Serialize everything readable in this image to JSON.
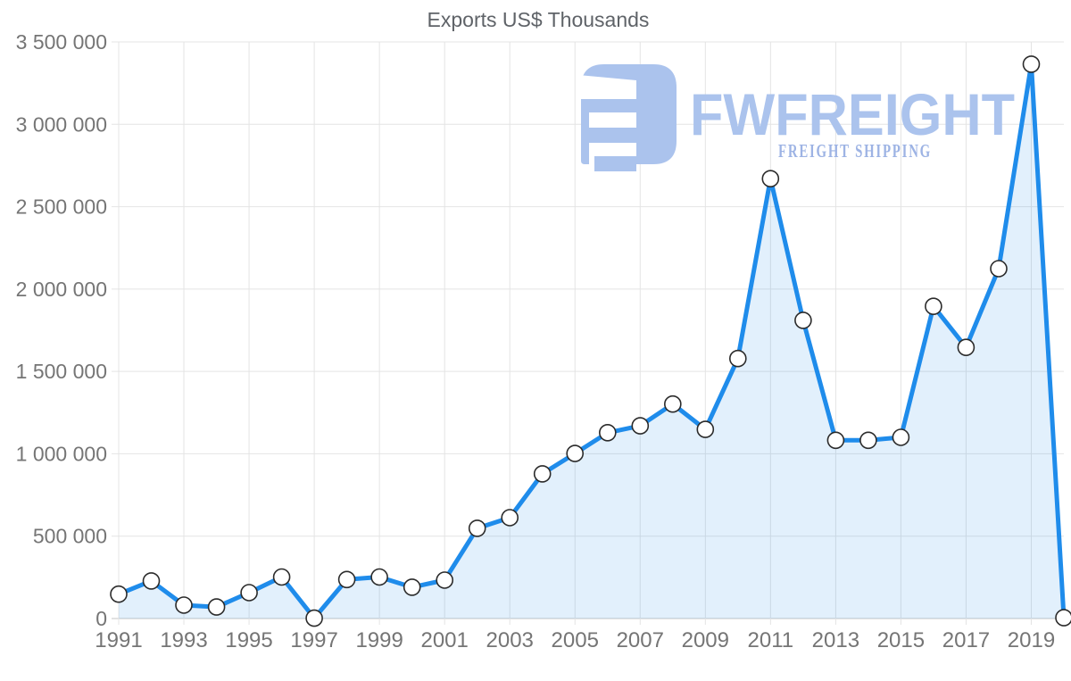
{
  "chart_data": {
    "type": "area",
    "title": "Exports US$ Thousands",
    "xlabel": "",
    "ylabel": "",
    "x": [
      1991,
      1992,
      1993,
      1994,
      1995,
      1996,
      1997,
      1998,
      1999,
      2000,
      2001,
      2002,
      2003,
      2004,
      2005,
      2006,
      2007,
      2008,
      2009,
      2010,
      2011,
      2012,
      2013,
      2014,
      2015,
      2016,
      2017,
      2018,
      2019,
      2020
    ],
    "values": [
      148000,
      228000,
      81000,
      70000,
      157000,
      252000,
      2000,
      237000,
      252000,
      190000,
      233000,
      548000,
      612000,
      878000,
      1002000,
      1128000,
      1170000,
      1302000,
      1148000,
      1578000,
      2670000,
      1810000,
      1082000,
      1082000,
      1100000,
      1895000,
      1646000,
      2124000,
      3365000,
      5000
    ],
    "x_tick_labels": [
      "1991",
      "1993",
      "1995",
      "1997",
      "1999",
      "2001",
      "2003",
      "2005",
      "2007",
      "2009",
      "2011",
      "2013",
      "2015",
      "2017",
      "2019"
    ],
    "y_tick_labels": [
      "0",
      "500 000",
      "1 000 000",
      "1 500 000",
      "2 000 000",
      "2 500 000",
      "3 000 000",
      "3 500 000"
    ],
    "y_tick_step": 500000,
    "ylim": [
      0,
      3500000
    ],
    "grid": "on",
    "legend": "none",
    "series_name": "Exports US$ Thousands"
  },
  "watermark": {
    "brand": "FWFREIGHT",
    "tagline": "FREIGHT SHIPPING",
    "logo_icon": "fwfreight-f-logo"
  },
  "colors": {
    "line": "#1f8ceb",
    "area_fill": "rgba(31,140,235,0.13)",
    "marker_fill": "#ffffff",
    "marker_stroke": "#2b2b2b",
    "grid": "#e4e4e4",
    "axis": "#c6c6c6",
    "tick_label": "#757575",
    "title": "#5f6368",
    "watermark": "#abc3ed",
    "watermark_tagline": "#9db3e4"
  }
}
